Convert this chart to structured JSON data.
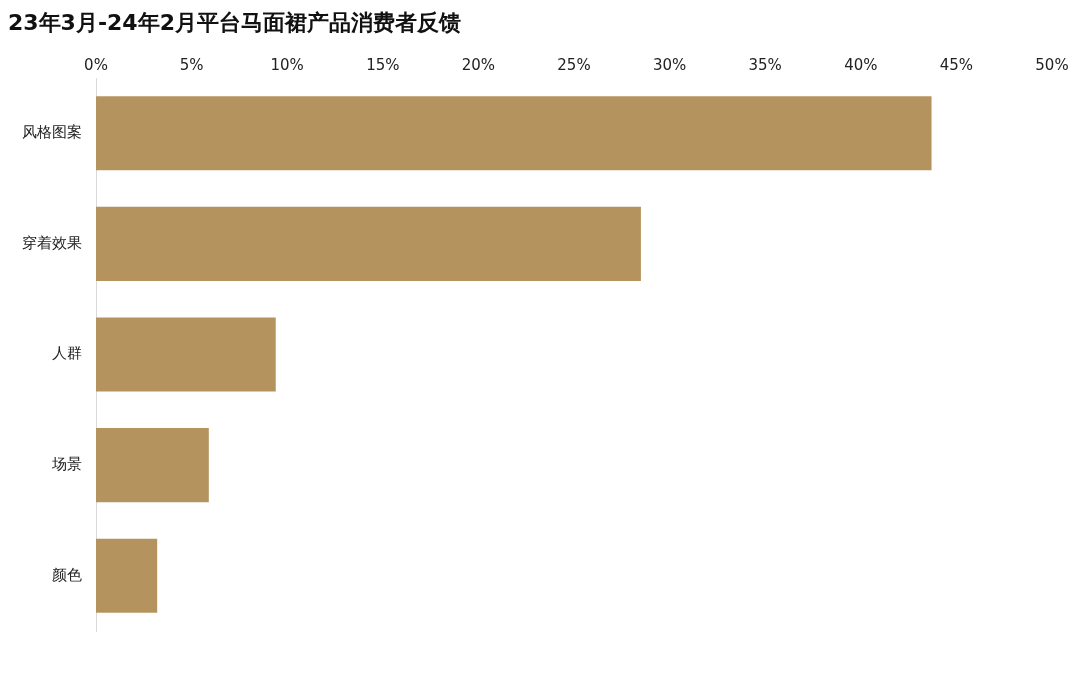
{
  "chart_data": {
    "type": "bar",
    "orientation": "horizontal",
    "title": "23年3月-24年2月平台马面裙产品消费者反馈",
    "categories": [
      "风格图案",
      "穿着效果",
      "人群",
      "场景",
      "颜色"
    ],
    "values": [
      43.7,
      28.5,
      9.4,
      5.9,
      3.2
    ],
    "color": "#b5935f",
    "xlim": [
      0,
      50
    ],
    "xticks": [
      {
        "value": 0,
        "label": "0%"
      },
      {
        "value": 5,
        "label": "5%"
      },
      {
        "value": 10,
        "label": "10%"
      },
      {
        "value": 15,
        "label": "15%"
      },
      {
        "value": 20,
        "label": "20%"
      },
      {
        "value": 25,
        "label": "25%"
      },
      {
        "value": 30,
        "label": "30%"
      },
      {
        "value": 35,
        "label": "35%"
      },
      {
        "value": 40,
        "label": "40%"
      },
      {
        "value": 45,
        "label": "45%"
      },
      {
        "value": 50,
        "label": "50%"
      }
    ],
    "grid": false,
    "legend": false
  }
}
